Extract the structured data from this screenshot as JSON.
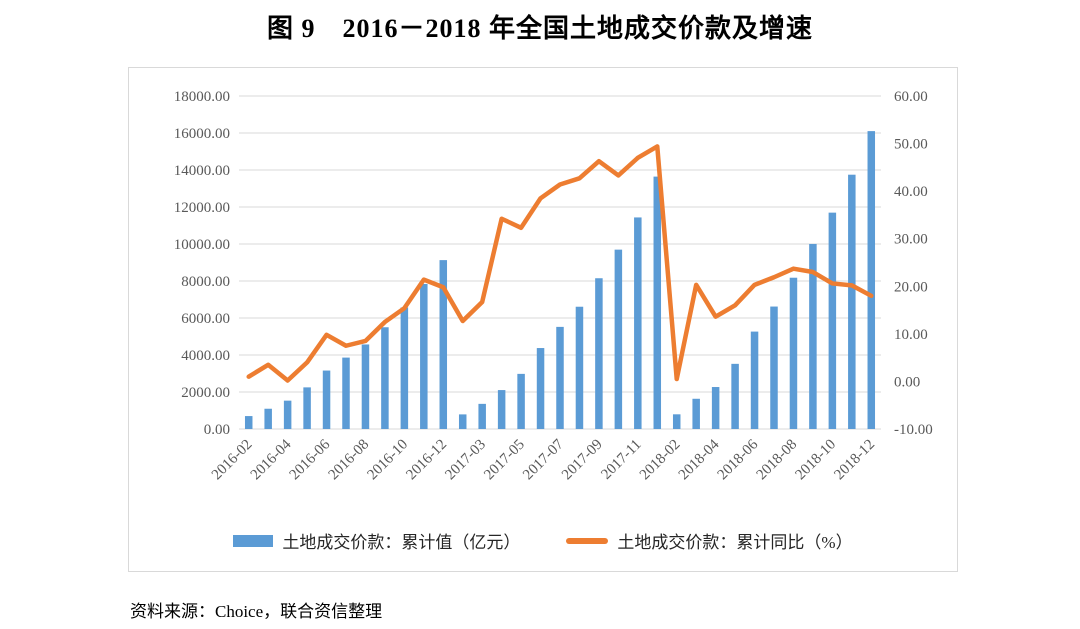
{
  "title": "图 9　2016－2018 年全国土地成交价款及增速",
  "source": "资料来源：Choice，联合资信整理",
  "colors": {
    "bar": "#5B9BD5",
    "line": "#ED7D31",
    "grid": "#D9D9D9",
    "axis_text": "#595959",
    "box_border": "#D9D9D9",
    "legend_text": "#262626"
  },
  "chart_data": {
    "type": "bar",
    "subtype": "combo-bar-line-dual-axis",
    "title": "图 9　2016－2018 年全国土地成交价款及增速",
    "categories": [
      "2016-02",
      "2016-03",
      "2016-04",
      "2016-05",
      "2016-06",
      "2016-07",
      "2016-08",
      "2016-09",
      "2016-10",
      "2016-11",
      "2016-12",
      "2017-02",
      "2017-03",
      "2017-04",
      "2017-05",
      "2017-06",
      "2017-07",
      "2017-08",
      "2017-09",
      "2017-10",
      "2017-11",
      "2017-12",
      "2018-02",
      "2018-03",
      "2018-04",
      "2018-05",
      "2018-06",
      "2018-07",
      "2018-08",
      "2018-09",
      "2018-10",
      "2018-11",
      "2018-12"
    ],
    "x_tick_labels_shown": [
      "2016-02",
      "2016-04",
      "2016-06",
      "2016-08",
      "2016-10",
      "2016-12",
      "2017-03",
      "2017-05",
      "2017-07",
      "2017-09",
      "2017-11",
      "2018-02",
      "2018-04",
      "2018-06",
      "2018-08",
      "2018-10",
      "2018-12"
    ],
    "series": [
      {
        "name": "土地成交价款：累计值（亿元）",
        "type": "bar",
        "axis": "left",
        "values": [
          699,
          1095,
          1532,
          2250,
          3159,
          3860,
          4570,
          5500,
          6570,
          7840,
          9129,
          790,
          1359,
          2104,
          2980,
          4376,
          5520,
          6609,
          8149,
          9695,
          11436,
          13643,
          794,
          1634,
          2269,
          3522,
          5265,
          6619,
          8177,
          10002,
          11695,
          13746,
          16102
        ]
      },
      {
        "name": "土地成交价款：累计同比（%）",
        "type": "line",
        "axis": "right",
        "values": [
          1.0,
          3.5,
          0.2,
          4.0,
          9.8,
          7.5,
          8.5,
          12.5,
          15.4,
          21.4,
          19.8,
          12.7,
          16.7,
          34.2,
          32.3,
          38.5,
          41.4,
          42.7,
          46.3,
          43.3,
          47.0,
          49.4,
          0.5,
          20.3,
          13.6,
          16.0,
          20.3,
          21.9,
          23.7,
          23.0,
          20.6,
          20.2,
          18.0
        ]
      }
    ],
    "left_axis": {
      "min": 0,
      "max": 18000,
      "step": 2000,
      "tick_format": "two_decimals"
    },
    "right_axis": {
      "min": -10,
      "max": 60,
      "step": 10,
      "tick_format": "two_decimals"
    },
    "grid": true,
    "legend_position": "bottom",
    "x_label_rotation_deg": 45
  }
}
